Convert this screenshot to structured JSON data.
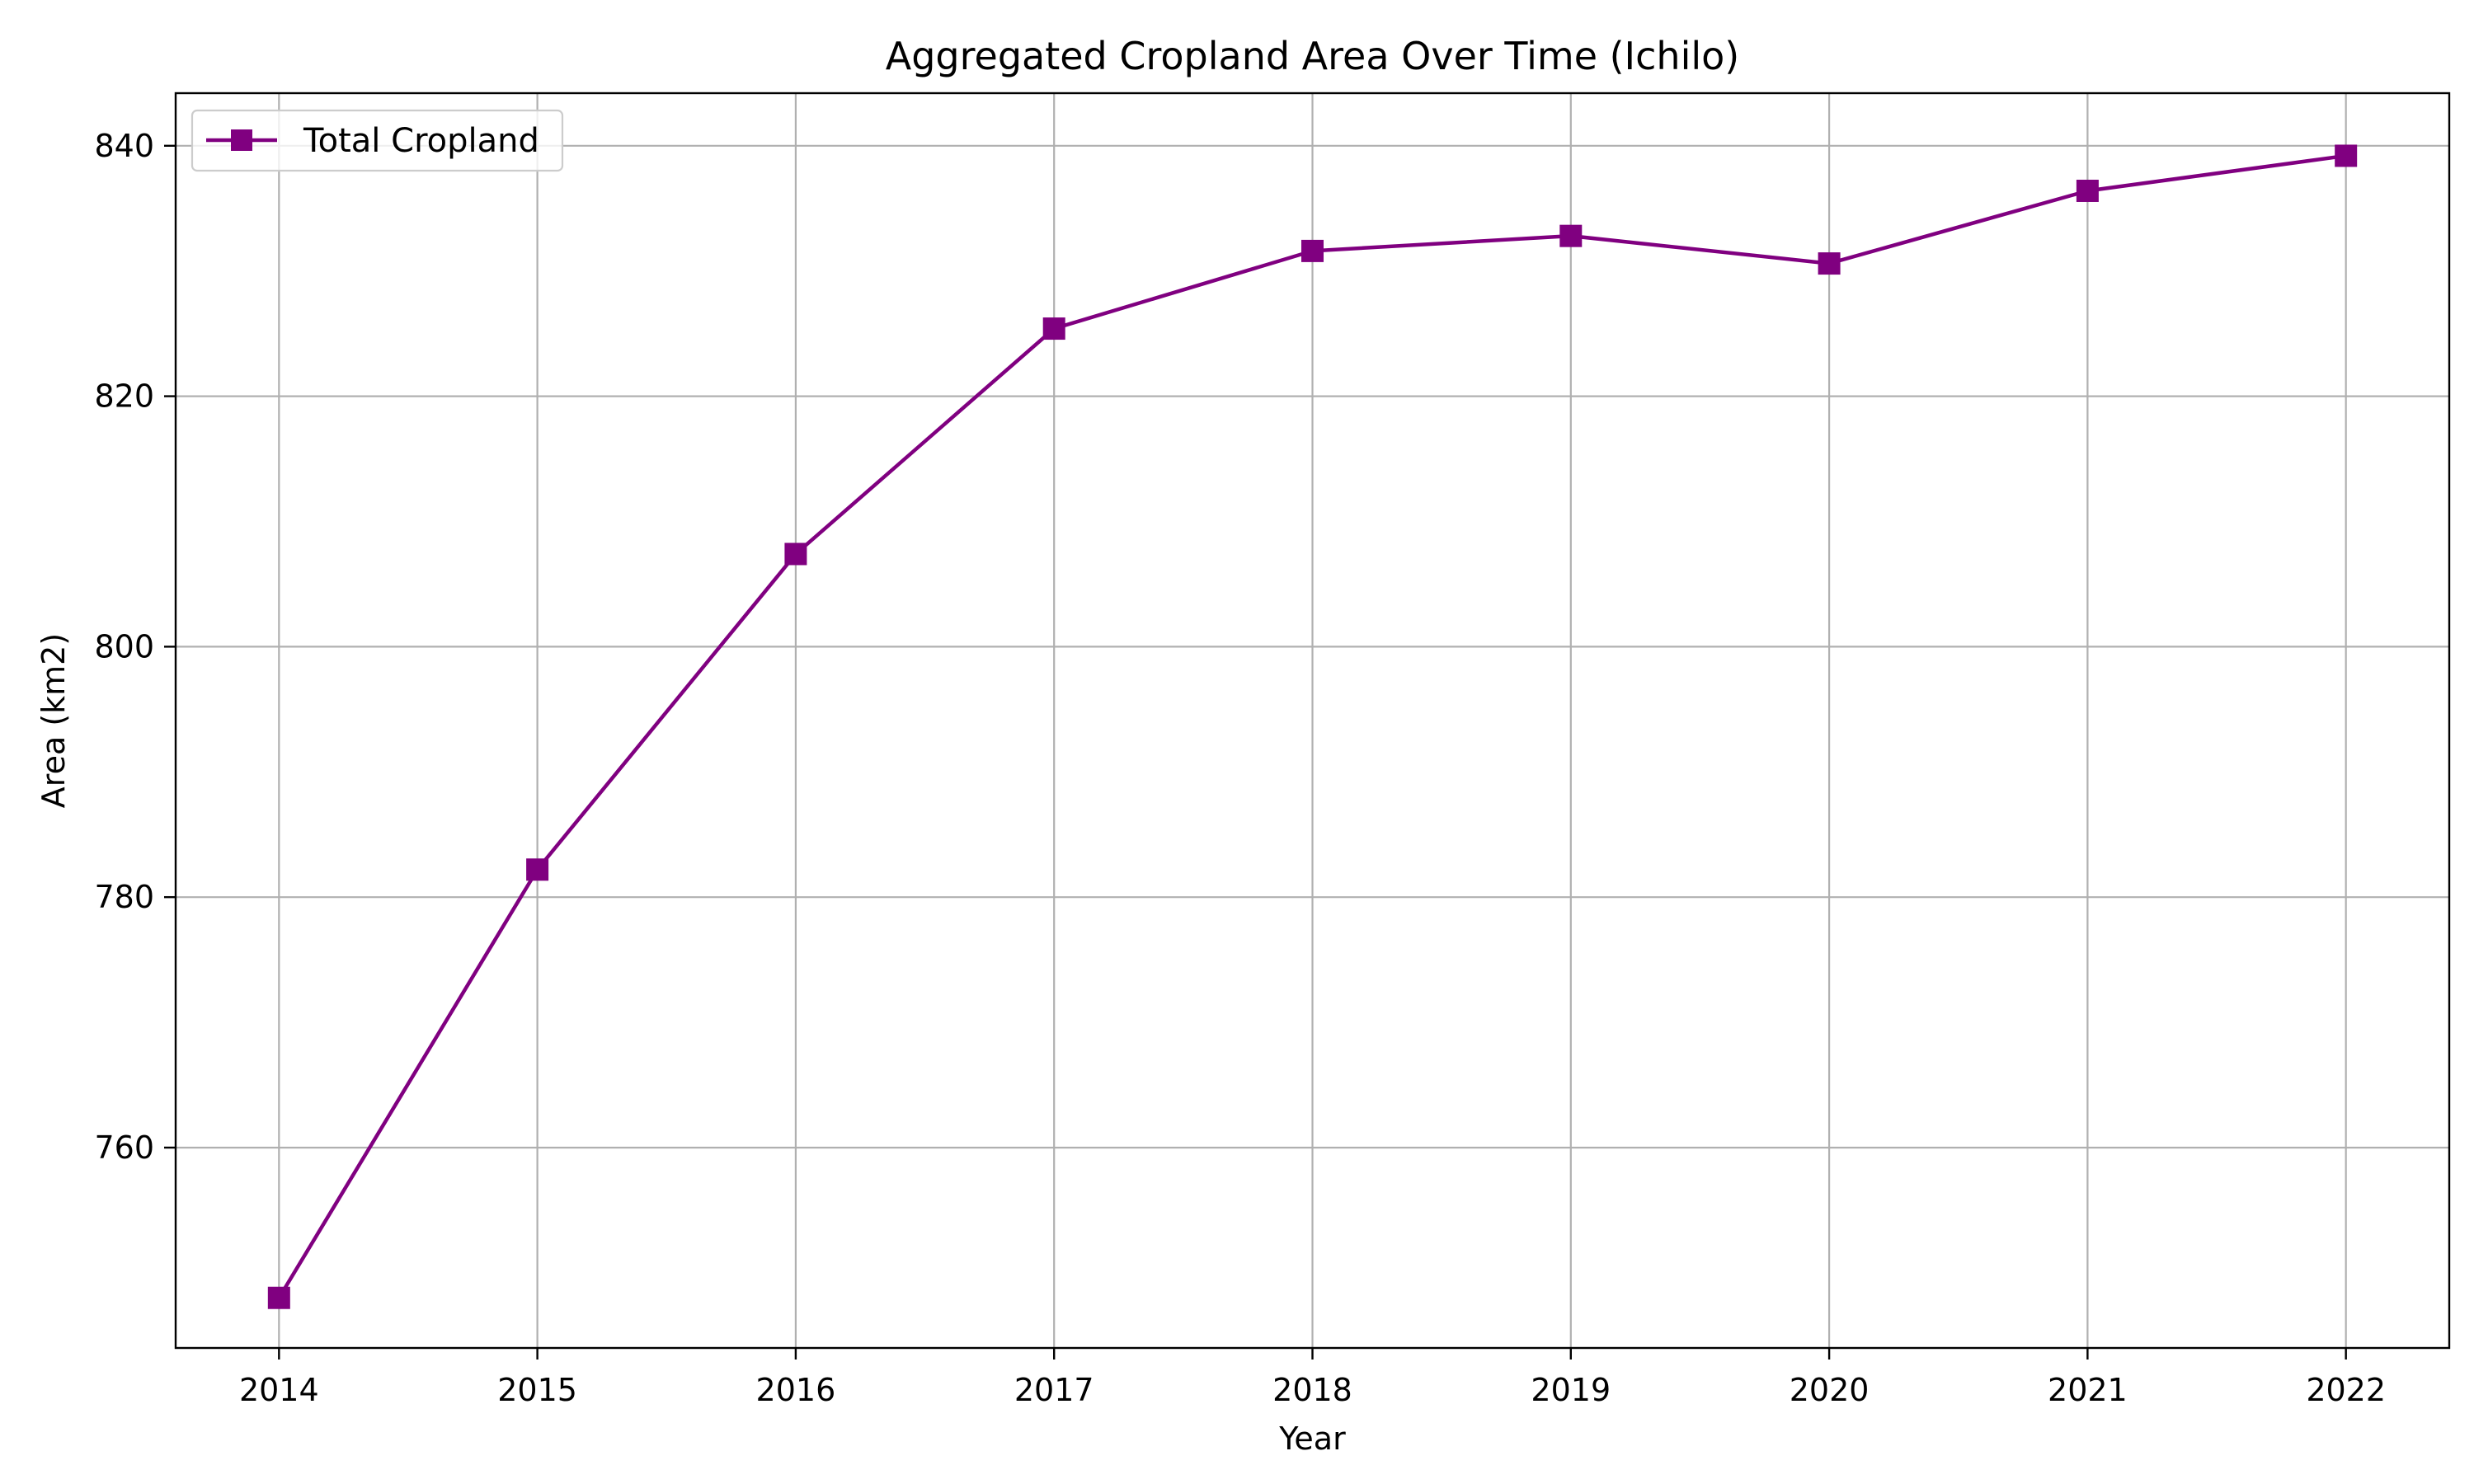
{
  "chart_data": {
    "type": "line",
    "title": "Aggregated Cropland Area Over Time (Ichilo)",
    "xlabel": "Year",
    "ylabel": "Area (km2)",
    "x": [
      2014,
      2015,
      2016,
      2017,
      2018,
      2019,
      2020,
      2021,
      2022
    ],
    "xticks": [
      "2014",
      "2015",
      "2016",
      "2017",
      "2018",
      "2019",
      "2020",
      "2021",
      "2022"
    ],
    "yticks": [
      "760",
      "780",
      "800",
      "820",
      "840"
    ],
    "xlim": [
      2013.6,
      2022.4
    ],
    "ylim": [
      744,
      844.2
    ],
    "grid": true,
    "legend_position": "upper-left",
    "series": [
      {
        "name": "Total Cropland",
        "color": "#800080",
        "marker": "square",
        "values": [
          748.0,
          782.2,
          807.4,
          825.4,
          831.6,
          832.8,
          830.6,
          836.4,
          839.2
        ]
      }
    ]
  }
}
